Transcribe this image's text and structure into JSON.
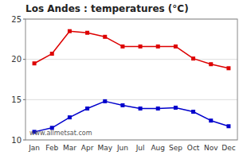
{
  "chart_data": {
    "type": "line",
    "title": "Los Andes : temperatures (°C)",
    "categories": [
      "Jan",
      "Feb",
      "Mar",
      "Apr",
      "May",
      "Jun",
      "Jul",
      "Aug",
      "Sep",
      "Oct",
      "Nov",
      "Dec"
    ],
    "series": [
      {
        "color": "#dd0000",
        "marker": "square",
        "values": [
          19.5,
          20.7,
          23.5,
          23.3,
          22.8,
          21.6,
          21.6,
          21.6,
          21.6,
          20.1,
          19.4,
          18.9
        ]
      },
      {
        "color": "#0000cc",
        "marker": "square",
        "values": [
          11.0,
          11.5,
          12.8,
          13.9,
          14.8,
          14.3,
          13.9,
          13.9,
          14.0,
          13.5,
          12.4,
          11.7
        ]
      }
    ],
    "ylim": [
      10,
      25
    ],
    "yticks": [
      10,
      15,
      20,
      25
    ],
    "grid": true,
    "annotations": [
      "www.allmetsat.com"
    ]
  }
}
